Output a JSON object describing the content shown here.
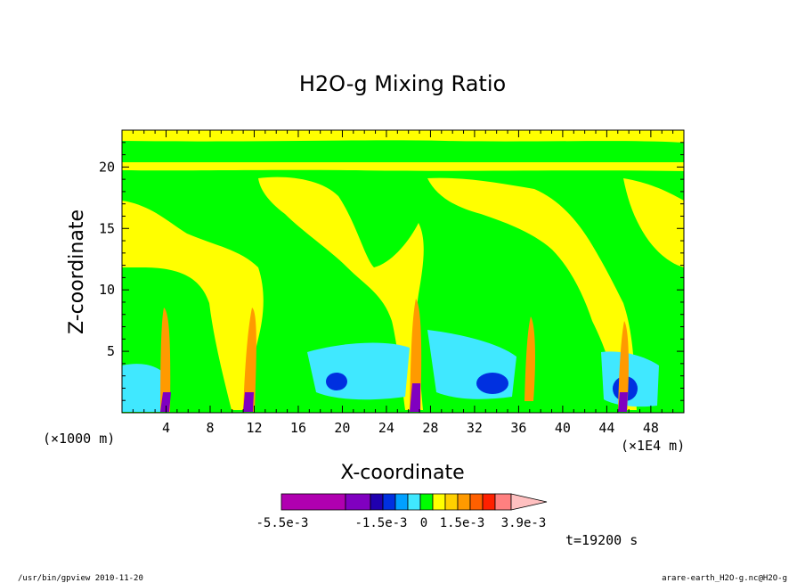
{
  "chart_data": {
    "type": "heatmap",
    "title": "H2O-g Mixing Ratio",
    "xlabel": "X-coordinate",
    "ylabel": "Z-coordinate",
    "x_unit_left": "(×1000 m)",
    "x_unit_right": "(×1E4 m)",
    "xlim": [
      0,
      51
    ],
    "ylim": [
      0,
      23
    ],
    "x_ticks": [
      4,
      8,
      12,
      16,
      20,
      24,
      28,
      32,
      36,
      40,
      44,
      48
    ],
    "y_ticks": [
      5,
      10,
      15,
      20
    ],
    "colorbar": {
      "labels": [
        "-5.5e-3",
        "-1.5e-3",
        "0",
        "1.5e-3",
        "3.9e-3"
      ],
      "colors": [
        "#b000b0",
        "#8000c0",
        "#2000b0",
        "#0030e0",
        "#00a0ff",
        "#40e8ff",
        "#00ff00",
        "#ffff00",
        "#ffd000",
        "#ff9a00",
        "#ff6000",
        "#ff2000",
        "#ff8080",
        "#ffc0c0"
      ]
    },
    "time_label": "t=19200 s"
  },
  "footer": {
    "left": "/usr/bin/gpview  2010-11-20",
    "right": "arare-earth_H2O-g.nc@H2O-g"
  },
  "colors": {
    "green": "#00ff00",
    "yellow": "#ffff00",
    "orange": "#ff9a00",
    "cyan": "#40e8ff",
    "blue": "#0030e0",
    "purple": "#8000c0"
  }
}
